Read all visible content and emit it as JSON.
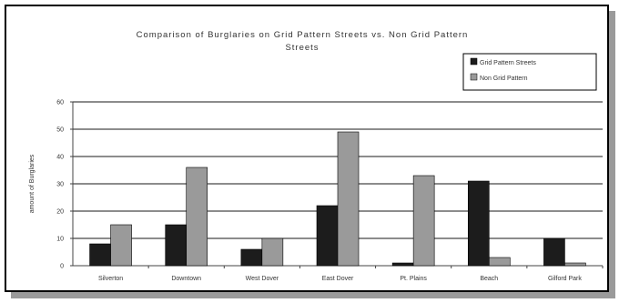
{
  "chart_data": {
    "type": "bar",
    "title_lines": [
      "Comparison of Burglaries on Grid Pattern Streets vs. Non Grid Pattern",
      "Streets"
    ],
    "xlabel": "",
    "ylabel": "amount of Burglaries",
    "ylim": [
      0,
      60
    ],
    "yticks": [
      0,
      10,
      20,
      30,
      40,
      50,
      60
    ],
    "grid": true,
    "legend_position": "top-right",
    "categories": [
      "Silverton",
      "Downtown",
      "West Dover",
      "East Dover",
      "Pt. Plains",
      "Beach",
      "Gilford Park"
    ],
    "series": [
      {
        "name": "Grid Pattern Streets",
        "color": "#1c1c1c",
        "values": [
          8,
          15,
          6,
          22,
          1,
          31,
          10
        ]
      },
      {
        "name": "Non Grid Pattern",
        "color": "#9a9a9a",
        "values": [
          15,
          36,
          10,
          49,
          33,
          3,
          1
        ]
      }
    ]
  }
}
